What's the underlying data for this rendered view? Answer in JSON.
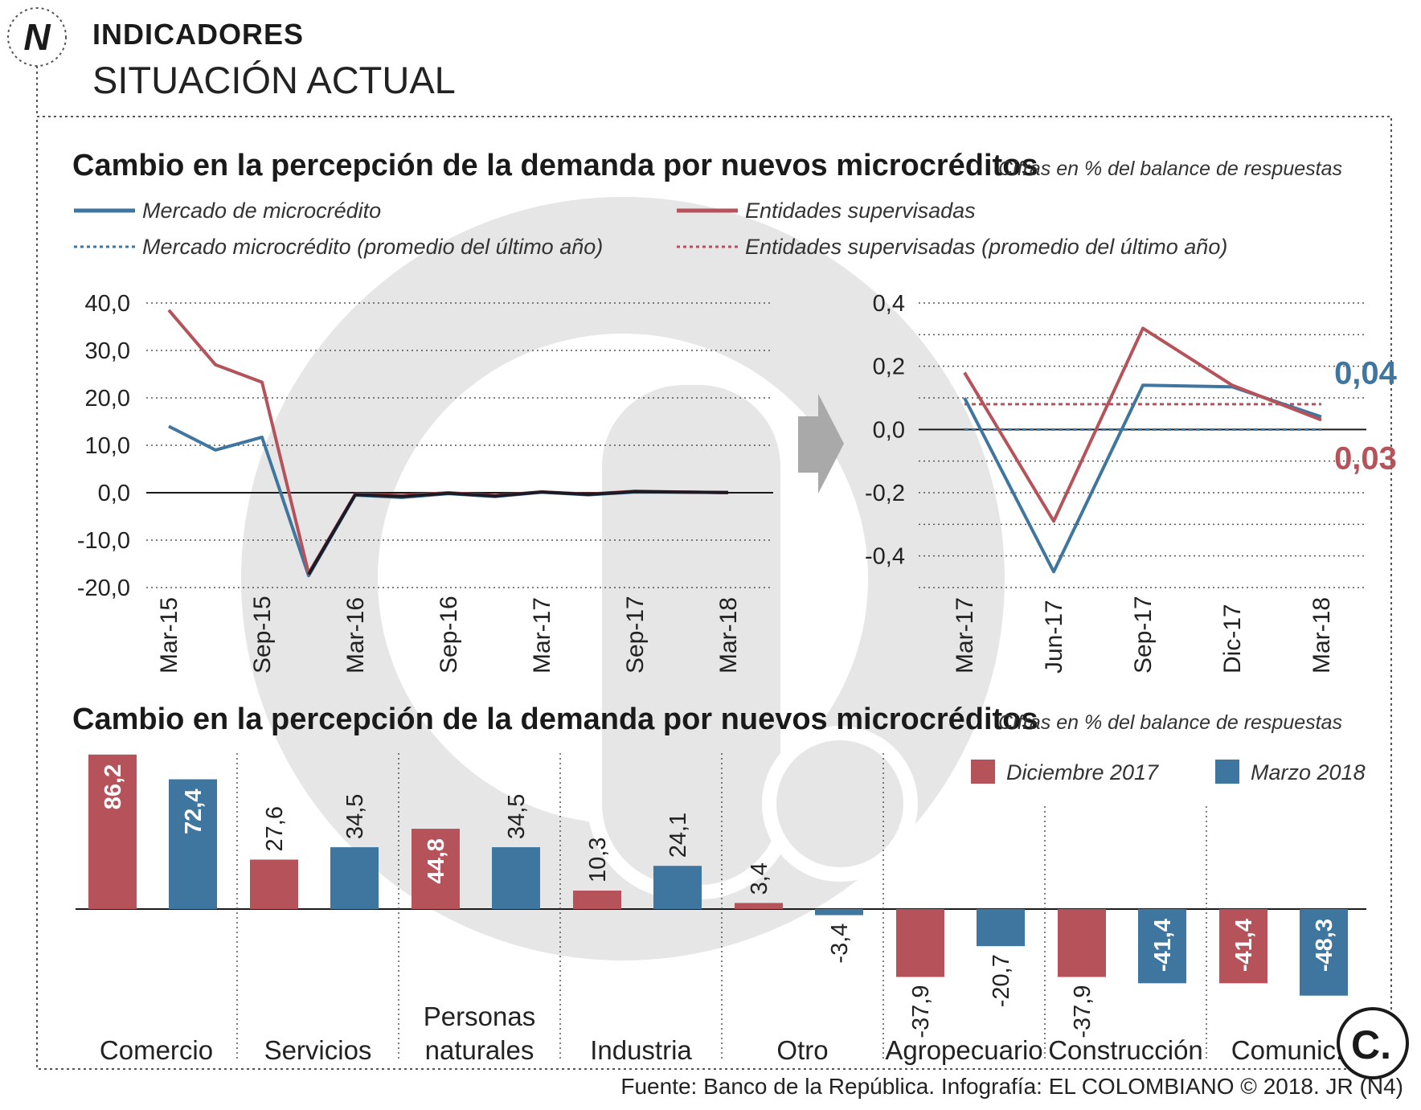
{
  "header": {
    "kicker": "INDICADORES",
    "subtitle": "SITUACIÓN ACTUAL",
    "logo_letter": "N"
  },
  "source": "Fuente: Banco de la República. Infografía: EL COLOMBIANO © 2018. JR (N4)",
  "brand_logo": "C.",
  "colors": {
    "blue": "#3f76a0",
    "red": "#b5525a",
    "dark": "#1d1a24",
    "watermark": "#e6e6e6",
    "arrow": "#a9a9a9"
  },
  "chart_data": [
    {
      "type": "line",
      "title": "Cambio en la percepción de la demanda por nuevos microcréditos",
      "subtitle": "Cifras en % del balance de respuestas",
      "legend": {
        "mercado": "Mercado de microcrédito",
        "entidades": "Entidades supervisadas",
        "mercado_prom": "Mercado microcrédito (promedio del último año)",
        "entidades_prom": "Entidades supervisadas (promedio del último año)"
      },
      "yticks": [
        "40,0",
        "30,0",
        "20,0",
        "10,0",
        "0,0",
        "-10,0",
        "-20,0"
      ],
      "ylim": [
        -20,
        40
      ],
      "xtick_labels": [
        "Mar-15",
        "Sep-15",
        "Mar-16",
        "Sep-16",
        "Mar-17",
        "Sep-17",
        "Mar-18"
      ],
      "x": [
        "Mar-15",
        "Jun-15",
        "Sep-15",
        "Dic-15",
        "Mar-16",
        "Jun-16",
        "Sep-16",
        "Dic-16",
        "Mar-17",
        "Jun-17",
        "Sep-17",
        "Dic-17",
        "Mar-18"
      ],
      "series": [
        {
          "name": "Mercado de microcrédito",
          "values": [
            14.0,
            9.0,
            11.7,
            -17.5,
            -0.5,
            -1.0,
            -0.2,
            -0.8,
            0.1,
            -0.45,
            0.14,
            0.13,
            0.04
          ]
        },
        {
          "name": "Entidades supervisadas",
          "values": [
            38.5,
            27.0,
            23.3,
            -17.0,
            -0.3,
            -0.6,
            0.0,
            -0.6,
            0.18,
            -0.29,
            0.32,
            0.14,
            0.03
          ]
        }
      ]
    },
    {
      "type": "line",
      "yticks": [
        "0,4",
        "0,2",
        "0,0",
        "-0,2",
        "-0,4"
      ],
      "ylim": [
        -0.5,
        0.4
      ],
      "x": [
        "Mar-17",
        "Jun-17",
        "Sep-17",
        "Dic-17",
        "Mar-18"
      ],
      "series": [
        {
          "name": "Mercado de microcrédito",
          "values": [
            0.1,
            -0.45,
            0.14,
            0.135,
            0.04
          ],
          "average": 0.0
        },
        {
          "name": "Entidades supervisadas",
          "values": [
            0.18,
            -0.29,
            0.32,
            0.14,
            0.03
          ],
          "average": 0.08
        }
      ],
      "end_labels": {
        "mercado": "0,04",
        "entidades": "0,03"
      }
    },
    {
      "type": "bar",
      "title": "Cambio en la percepción de la demanda por nuevos microcréditos",
      "subtitle": "Cifras en % del balance de respuestas",
      "categories": [
        "Comercio",
        "Servicios",
        "Personas naturales",
        "Industria",
        "Otro",
        "Agropecuario",
        "Construcción",
        "Comunic."
      ],
      "series": [
        {
          "name": "Diciembre 2017",
          "values": [
            86.2,
            27.6,
            44.8,
            10.3,
            3.4,
            -37.9,
            -37.9,
            -41.4
          ],
          "labels": [
            "86,2",
            "27,6",
            "44,8",
            "10,3",
            "3,4",
            "-37,9",
            "-37,9",
            "-41,4"
          ]
        },
        {
          "name": "Marzo 2018",
          "values": [
            72.4,
            34.5,
            34.5,
            24.1,
            -3.4,
            -20.7,
            -41.4,
            -48.3
          ],
          "labels": [
            "72,4",
            "34,5",
            "34,5",
            "24,1",
            "-3,4",
            "-20,7",
            "-41,4",
            "-48,3"
          ]
        }
      ]
    }
  ]
}
